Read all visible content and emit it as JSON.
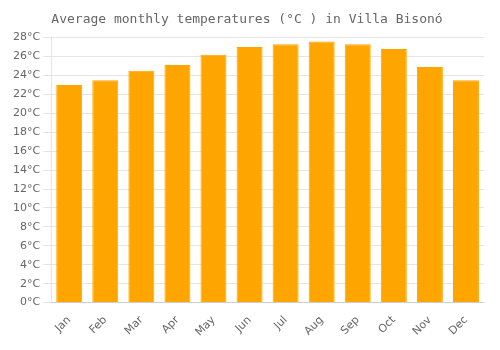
{
  "chart_data": {
    "type": "bar",
    "title": "Average monthly temperatures (°C ) in Villa Bisonó",
    "categories": [
      "Jan",
      "Feb",
      "Mar",
      "Apr",
      "May",
      "Jun",
      "Jul",
      "Aug",
      "Sep",
      "Oct",
      "Nov",
      "Dec"
    ],
    "values": [
      23.0,
      23.5,
      24.5,
      25.1,
      26.2,
      27.0,
      27.3,
      27.6,
      27.3,
      26.8,
      24.9,
      23.5
    ],
    "color": "#FFA500",
    "ylim": [
      0,
      28
    ],
    "yticks": [
      {
        "value": 0,
        "label": "0°C"
      },
      {
        "value": 2,
        "label": "2°C"
      },
      {
        "value": 4,
        "label": "4°C"
      },
      {
        "value": 6,
        "label": "6°C"
      },
      {
        "value": 8,
        "label": "8°C"
      },
      {
        "value": 10,
        "label": "10°C"
      },
      {
        "value": 12,
        "label": "12°C"
      },
      {
        "value": 14,
        "label": "14°C"
      },
      {
        "value": 16,
        "label": "16°C"
      },
      {
        "value": 18,
        "label": "18°C"
      },
      {
        "value": 20,
        "label": "20°C"
      },
      {
        "value": 22,
        "label": "22°C"
      },
      {
        "value": 24,
        "label": "24°C"
      },
      {
        "value": 26,
        "label": "26°C"
      },
      {
        "value": 28,
        "label": "28°C"
      }
    ],
    "grid": true
  }
}
